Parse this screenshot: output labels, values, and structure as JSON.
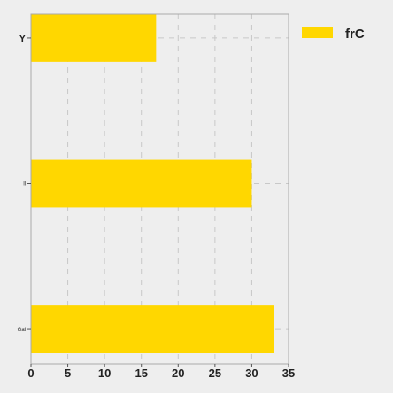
{
  "chart_data": {
    "type": "bar",
    "orientation": "horizontal",
    "categories": [
      "Y",
      "ll",
      "Gal"
    ],
    "series": [
      {
        "name": "frC",
        "values": [
          17,
          30,
          33
        ]
      }
    ],
    "xlim": [
      0,
      35
    ],
    "xticks": [
      0,
      5,
      10,
      15,
      20,
      25,
      30,
      35
    ],
    "grid": true,
    "legend_position": "top-right",
    "colors": {
      "bar": "#ffd700",
      "background": "#eeeeee",
      "grid": "#c8c8c8",
      "axis": "#aaaaaa",
      "text": "#222222"
    }
  }
}
